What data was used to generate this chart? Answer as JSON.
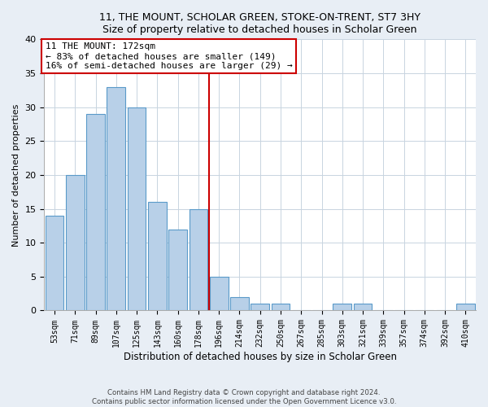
{
  "title": "11, THE MOUNT, SCHOLAR GREEN, STOKE-ON-TRENT, ST7 3HY",
  "subtitle": "Size of property relative to detached houses in Scholar Green",
  "xlabel": "Distribution of detached houses by size in Scholar Green",
  "ylabel": "Number of detached properties",
  "bar_labels": [
    "53sqm",
    "71sqm",
    "89sqm",
    "107sqm",
    "125sqm",
    "143sqm",
    "160sqm",
    "178sqm",
    "196sqm",
    "214sqm",
    "232sqm",
    "250sqm",
    "267sqm",
    "285sqm",
    "303sqm",
    "321sqm",
    "339sqm",
    "357sqm",
    "374sqm",
    "392sqm",
    "410sqm"
  ],
  "bar_values": [
    14,
    20,
    29,
    33,
    30,
    16,
    12,
    15,
    5,
    2,
    1,
    1,
    0,
    0,
    1,
    1,
    0,
    0,
    0,
    0,
    1
  ],
  "bar_color": "#b8d0e8",
  "bar_edge_color": "#5a9ac9",
  "vline_x_index": 7.5,
  "vline_color": "#cc0000",
  "annotation_title": "11 THE MOUNT: 172sqm",
  "annotation_line1": "← 83% of detached houses are smaller (149)",
  "annotation_line2": "16% of semi-detached houses are larger (29) →",
  "ylim": [
    0,
    40
  ],
  "yticks": [
    0,
    5,
    10,
    15,
    20,
    25,
    30,
    35,
    40
  ],
  "footer_line1": "Contains HM Land Registry data © Crown copyright and database right 2024.",
  "footer_line2": "Contains public sector information licensed under the Open Government Licence v3.0.",
  "bg_color": "#e8eef5",
  "plot_bg_color": "#ffffff",
  "grid_color": "#c8d4e0"
}
